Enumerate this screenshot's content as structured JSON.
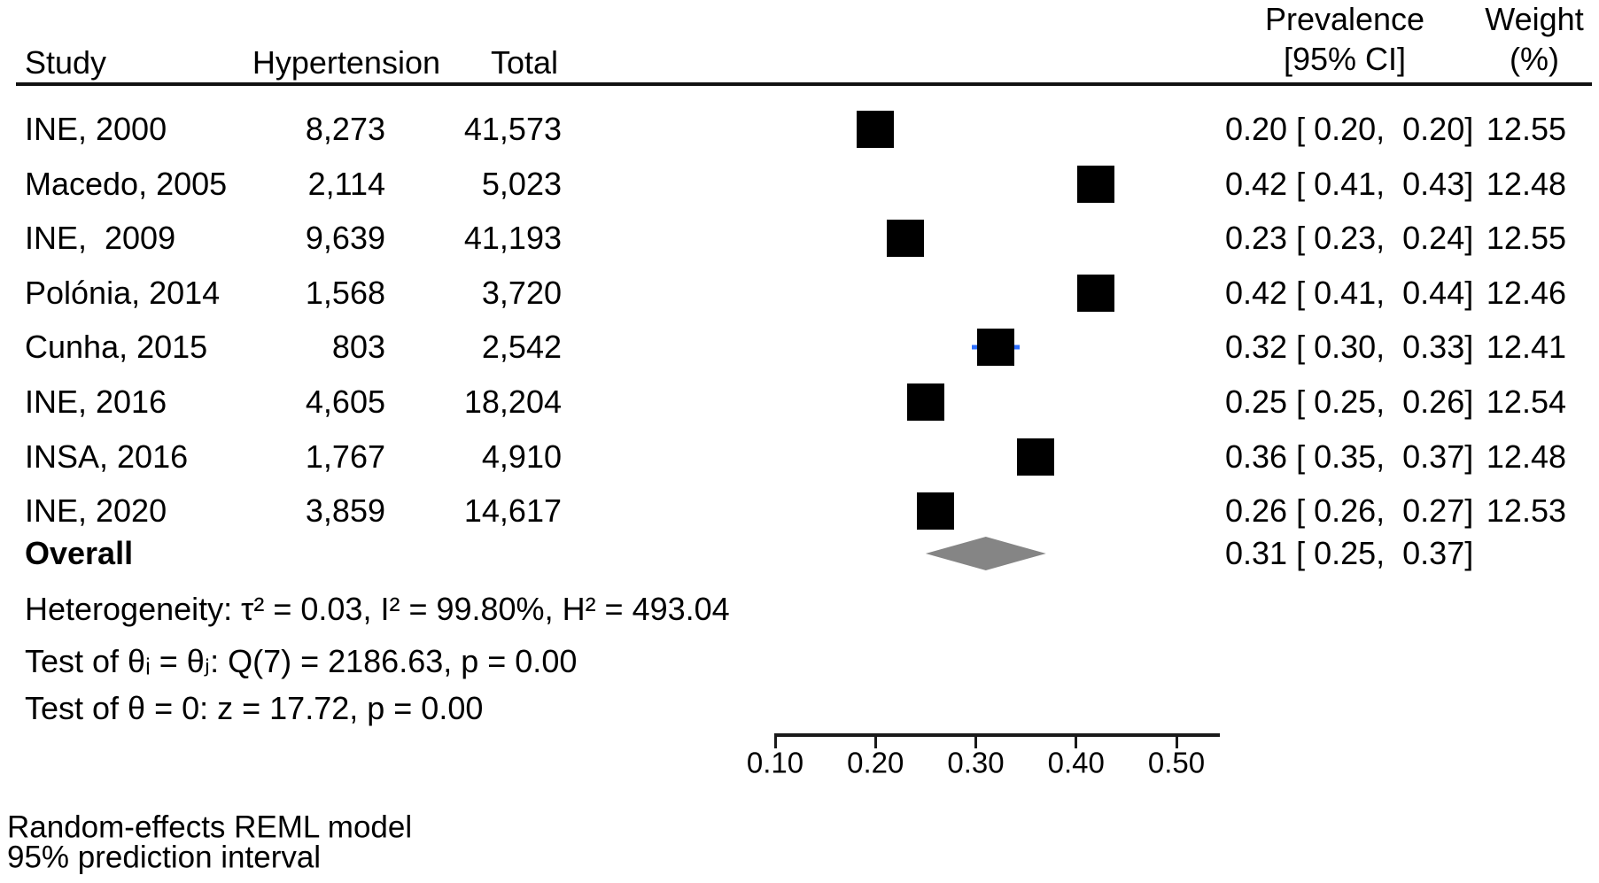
{
  "chart_data": {
    "type": "scatter",
    "subtype": "forest-plot",
    "title": "",
    "xlabel": "",
    "x_ticks": [
      0.1,
      0.2,
      0.3,
      0.4,
      0.5
    ],
    "xlim": [
      0.1,
      0.545
    ],
    "grid": false,
    "legend": false,
    "studies": [
      {
        "study": "INE, 2000",
        "hypertension": 8273,
        "total": 41573,
        "prevalence": 0.2,
        "ci_lo": 0.2,
        "ci_hi": 0.2,
        "weight_pct": 12.55
      },
      {
        "study": "Macedo, 2005",
        "hypertension": 2114,
        "total": 5023,
        "prevalence": 0.42,
        "ci_lo": 0.41,
        "ci_hi": 0.43,
        "weight_pct": 12.48
      },
      {
        "study": "INE,  2009",
        "hypertension": 9639,
        "total": 41193,
        "prevalence": 0.23,
        "ci_lo": 0.23,
        "ci_hi": 0.24,
        "weight_pct": 12.55
      },
      {
        "study": "Polónia, 2014",
        "hypertension": 1568,
        "total": 3720,
        "prevalence": 0.42,
        "ci_lo": 0.41,
        "ci_hi": 0.44,
        "weight_pct": 12.46
      },
      {
        "study": "Cunha, 2015",
        "hypertension": 803,
        "total": 2542,
        "prevalence": 0.32,
        "ci_lo": 0.3,
        "ci_hi": 0.33,
        "weight_pct": 12.41
      },
      {
        "study": "INE, 2016",
        "hypertension": 4605,
        "total": 18204,
        "prevalence": 0.25,
        "ci_lo": 0.25,
        "ci_hi": 0.26,
        "weight_pct": 12.54
      },
      {
        "study": "INSA, 2016",
        "hypertension": 1767,
        "total": 4910,
        "prevalence": 0.36,
        "ci_lo": 0.35,
        "ci_hi": 0.37,
        "weight_pct": 12.48
      },
      {
        "study": "INE, 2020",
        "hypertension": 3859,
        "total": 14617,
        "prevalence": 0.26,
        "ci_lo": 0.26,
        "ci_hi": 0.27,
        "weight_pct": 12.53
      }
    ],
    "overall": {
      "prevalence": 0.31,
      "ci_lo": 0.25,
      "ci_hi": 0.37
    },
    "heterogeneity": {
      "tau2": 0.03,
      "I2_pct": 99.8,
      "H2": 493.04,
      "Q_df": 7,
      "Q": 2186.63,
      "p_Q": 0.0,
      "z": 17.72,
      "p_z": 0.0
    },
    "model": "Random-effects REML model"
  },
  "header": {
    "study": "Study",
    "hypertension": "Hypertension",
    "total": "Total",
    "prevalence_line1": "Prevalence",
    "prevalence_line2": "[95% CI]",
    "weight_line1": "Weight",
    "weight_line2": "(%)"
  },
  "studies": [
    {
      "label": "INE, 2000",
      "cases": "8,273",
      "total": "41,573",
      "est": 0.2,
      "ci_text": "0.20 [ 0.20,  0.20]",
      "weight": "12.55",
      "ci_visible": false
    },
    {
      "label": "Macedo, 2005",
      "cases": "2,114",
      "total": "5,023",
      "est": 0.42,
      "ci_text": "0.42 [ 0.41,  0.43]",
      "weight": "12.48",
      "ci_visible": false
    },
    {
      "label": "INE,  2009",
      "cases": "9,639",
      "total": "41,193",
      "est": 0.23,
      "ci_text": "0.23 [ 0.23,  0.24]",
      "weight": "12.55",
      "ci_visible": false
    },
    {
      "label": "Polónia, 2014",
      "cases": "1,568",
      "total": "3,720",
      "est": 0.42,
      "ci_text": "0.42 [ 0.41,  0.44]",
      "weight": "12.46",
      "ci_visible": false
    },
    {
      "label": "Cunha, 2015",
      "cases": "803",
      "total": "2,542",
      "est": 0.32,
      "ci_text": "0.32 [ 0.30,  0.33]",
      "weight": "12.41",
      "ci_visible": true
    },
    {
      "label": "INE, 2016",
      "cases": "4,605",
      "total": "18,204",
      "est": 0.25,
      "ci_text": "0.25 [ 0.25,  0.26]",
      "weight": "12.54",
      "ci_visible": false
    },
    {
      "label": "INSA, 2016",
      "cases": "1,767",
      "total": "4,910",
      "est": 0.36,
      "ci_text": "0.36 [ 0.35,  0.37]",
      "weight": "12.48",
      "ci_visible": false
    },
    {
      "label": "INE, 2020",
      "cases": "3,859",
      "total": "14,617",
      "est": 0.26,
      "ci_text": "0.26 [ 0.26,  0.27]",
      "weight": "12.53",
      "ci_visible": false
    }
  ],
  "overall": {
    "label": "Overall",
    "est": 0.31,
    "lo": 0.25,
    "hi": 0.37,
    "ci_text": "0.31 [ 0.25,  0.37]"
  },
  "stats": {
    "heterogeneity": "Heterogeneity: τ² = 0.03, I² = 99.80%, H² = 493.04",
    "test_theta_ij": "Test of θᵢ = θⱼ: Q(7) = 2186.63, p = 0.00",
    "test_theta_zero": "Test of θ = 0: z = 17.72, p = 0.00"
  },
  "axis": {
    "ticks": [
      {
        "label": "0.10",
        "value": 0.1
      },
      {
        "label": "0.20",
        "value": 0.2
      },
      {
        "label": "0.30",
        "value": 0.3
      },
      {
        "label": "0.40",
        "value": 0.4
      },
      {
        "label": "0.50",
        "value": 0.5
      }
    ]
  },
  "footer": {
    "line1": "Random-effects REML model",
    "line2": "95% prediction interval"
  },
  "colors": {
    "square": "#000000",
    "diamond": "#858585",
    "ci_whisker": "#2e6fff",
    "axis": "#1a1a1a",
    "text": "#000000",
    "background": "#ffffff"
  }
}
